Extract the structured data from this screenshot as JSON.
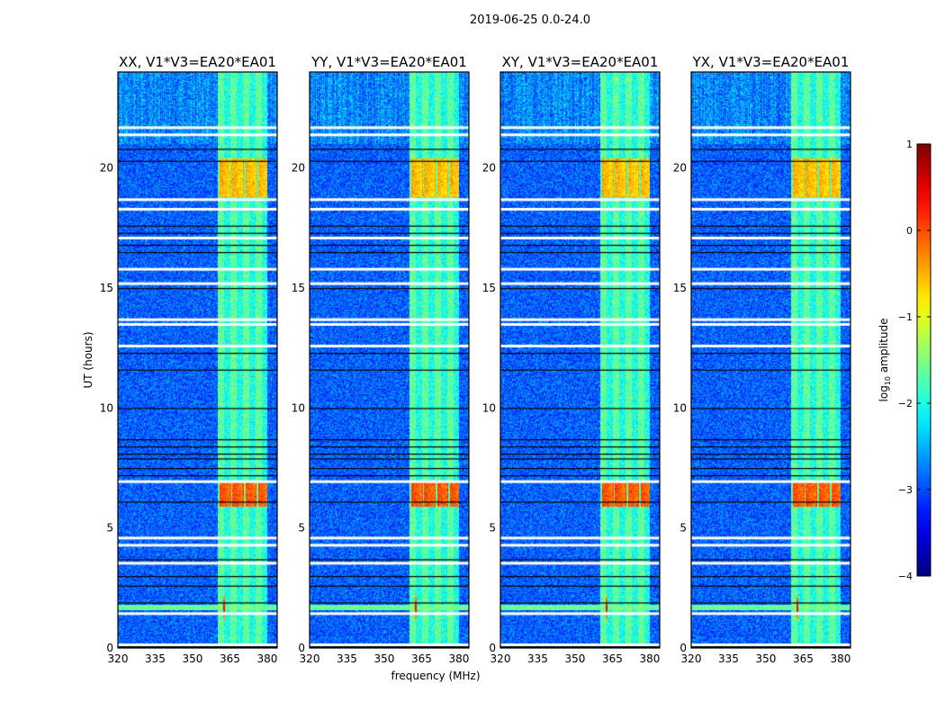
{
  "chart_data": {
    "type": "heatmap",
    "suptitle": "2019-06-25 0.0-24.0",
    "panels": [
      {
        "title": "XX, V1*V3=EA20*EA01"
      },
      {
        "title": "YY, V1*V3=EA20*EA01"
      },
      {
        "title": "XY, V1*V3=EA20*EA01"
      },
      {
        "title": "YX, V1*V3=EA20*EA01"
      }
    ],
    "xlabel": "frequency (MHz)",
    "ylabel": "UT (hours)",
    "xlim": [
      320,
      384
    ],
    "ylim": [
      0,
      24
    ],
    "xticks": [
      "320",
      "335",
      "350",
      "365",
      "380"
    ],
    "xtick_values": [
      320,
      335,
      350,
      365,
      380
    ],
    "yticks": [
      "0",
      "5",
      "10",
      "15",
      "20"
    ],
    "ytick_values": [
      0,
      5,
      10,
      15,
      20
    ],
    "colorbar": {
      "label": "log10 amplitude",
      "label_main": "log",
      "label_sub": "10",
      "label_rest": " amplitude",
      "range": [
        -4,
        1
      ],
      "ticks": [
        "1",
        "0",
        "−1",
        "−2",
        "−3",
        "−4"
      ],
      "tick_values": [
        1,
        0,
        -1,
        -2,
        -3,
        -4
      ],
      "colormap": "jet"
    },
    "background_level": -2.9,
    "bright_band_mhz": [
      360,
      380
    ],
    "band_level": -2.0,
    "hot_intervals_hours": [
      [
        5.9,
        7.0,
        0.1
      ],
      [
        18.8,
        20.4,
        -0.4
      ]
    ],
    "rfi_line": {
      "hour": 1.7,
      "freq_mhz": 362.5,
      "level": 0.5
    },
    "flagged_white_hours": [
      0.15,
      1.45,
      3.55,
      4.3,
      4.6,
      6.95,
      12.6,
      13.5,
      13.7,
      15.2,
      15.8,
      17.1,
      18.3,
      18.7,
      21.4,
      21.7
    ],
    "flagged_black_hours": [
      1.9,
      2.6,
      3.0,
      3.7,
      6.1,
      7.2,
      7.5,
      7.9,
      8.1,
      8.4,
      8.7,
      10.0,
      11.6,
      12.3,
      15.0,
      16.5,
      16.8,
      17.3,
      17.6,
      20.3,
      20.8
    ]
  }
}
